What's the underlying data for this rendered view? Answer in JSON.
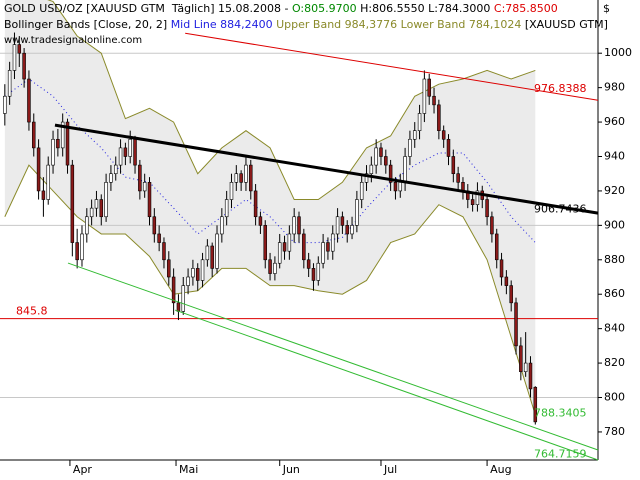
{
  "chart_data": {
    "type": "candlestick",
    "header": {
      "title": "GOLD USD/OZ [XAUUSD GTM  Täglich] 15.08.2008 -",
      "open": "O:805.9700",
      "high": "H:806.5550",
      "low": "L:784.3000",
      "close": "C:785.8500",
      "indicator": "Bollinger Bands [Close, 20, 2]",
      "mid": "Mid Line 884,2400",
      "bands": "Upper Band 984,3776 Lower Band 784,1024",
      "symbol": "[XAUUSD GTM]",
      "site": "www.tradesignalonline.com",
      "currency": "$"
    },
    "xlim": [
      -1,
      123
    ],
    "xticks": [
      {
        "value": 13.5,
        "label": "Apr"
      },
      {
        "value": 35.5,
        "label": "Mai"
      },
      {
        "value": 57,
        "label": "Jun"
      },
      {
        "value": 78,
        "label": "Jul"
      },
      {
        "value": 100,
        "label": "Aug"
      }
    ],
    "ylim": [
      763.7,
      1028
    ],
    "yticks": [
      780,
      800,
      820,
      840,
      860,
      880,
      900,
      920,
      940,
      960,
      980,
      1000
    ],
    "major_grid": [
      800,
      900,
      1000
    ],
    "up_color": "#ffffff",
    "down_color": "#8b1a1a",
    "ohlc": [
      [
        965,
        982,
        958,
        975
      ],
      [
        975,
        995,
        970,
        990
      ],
      [
        990,
        1012,
        985,
        1005
      ],
      [
        1005,
        1010,
        992,
        1000
      ],
      [
        1000,
        1003,
        980,
        985
      ],
      [
        985,
        990,
        955,
        960
      ],
      [
        960,
        965,
        940,
        945
      ],
      [
        945,
        950,
        915,
        920
      ],
      [
        920,
        928,
        905,
        915
      ],
      [
        915,
        940,
        912,
        935
      ],
      [
        935,
        955,
        930,
        950
      ],
      [
        950,
        956,
        940,
        945
      ],
      [
        945,
        965,
        940,
        960
      ],
      [
        960,
        962,
        930,
        935
      ],
      [
        935,
        938,
        882,
        890
      ],
      [
        890,
        898,
        875,
        880
      ],
      [
        880,
        900,
        876,
        895
      ],
      [
        895,
        910,
        890,
        905
      ],
      [
        905,
        915,
        900,
        910
      ],
      [
        910,
        920,
        905,
        915
      ],
      [
        915,
        918,
        900,
        905
      ],
      [
        905,
        930,
        902,
        925
      ],
      [
        925,
        935,
        920,
        930
      ],
      [
        930,
        940,
        926,
        935
      ],
      [
        935,
        950,
        930,
        945
      ],
      [
        945,
        948,
        935,
        940
      ],
      [
        940,
        955,
        936,
        950
      ],
      [
        950,
        952,
        930,
        935
      ],
      [
        935,
        938,
        915,
        920
      ],
      [
        920,
        930,
        916,
        925
      ],
      [
        925,
        928,
        900,
        905
      ],
      [
        905,
        910,
        890,
        895
      ],
      [
        895,
        900,
        885,
        890
      ],
      [
        890,
        893,
        875,
        880
      ],
      [
        880,
        885,
        865,
        870
      ],
      [
        870,
        875,
        848,
        855
      ],
      [
        855,
        860,
        845,
        850
      ],
      [
        850,
        870,
        848,
        865
      ],
      [
        865,
        875,
        860,
        870
      ],
      [
        870,
        880,
        865,
        875
      ],
      [
        875,
        878,
        862,
        868
      ],
      [
        868,
        884,
        864,
        880
      ],
      [
        880,
        892,
        876,
        888
      ],
      [
        888,
        890,
        870,
        875
      ],
      [
        875,
        900,
        872,
        895
      ],
      [
        895,
        910,
        890,
        905
      ],
      [
        905,
        920,
        900,
        915
      ],
      [
        915,
        930,
        910,
        925
      ],
      [
        925,
        935,
        920,
        930
      ],
      [
        930,
        932,
        920,
        925
      ],
      [
        925,
        940,
        920,
        935
      ],
      [
        935,
        938,
        915,
        920
      ],
      [
        920,
        924,
        900,
        905
      ],
      [
        905,
        908,
        895,
        900
      ],
      [
        900,
        903,
        875,
        880
      ],
      [
        880,
        884,
        868,
        872
      ],
      [
        872,
        882,
        868,
        878
      ],
      [
        878,
        895,
        875,
        890
      ],
      [
        890,
        894,
        880,
        885
      ],
      [
        885,
        900,
        880,
        895
      ],
      [
        895,
        910,
        890,
        905
      ],
      [
        905,
        908,
        890,
        895
      ],
      [
        895,
        898,
        875,
        880
      ],
      [
        880,
        884,
        870,
        875
      ],
      [
        875,
        878,
        862,
        868
      ],
      [
        868,
        882,
        865,
        878
      ],
      [
        878,
        895,
        875,
        890
      ],
      [
        890,
        893,
        880,
        885
      ],
      [
        885,
        900,
        880,
        895
      ],
      [
        895,
        910,
        890,
        905
      ],
      [
        905,
        908,
        895,
        900
      ],
      [
        900,
        903,
        890,
        895
      ],
      [
        895,
        905,
        892,
        900
      ],
      [
        900,
        920,
        896,
        915
      ],
      [
        915,
        930,
        910,
        925
      ],
      [
        925,
        935,
        920,
        930
      ],
      [
        930,
        940,
        925,
        935
      ],
      [
        935,
        950,
        930,
        945
      ],
      [
        945,
        948,
        935,
        940
      ],
      [
        940,
        944,
        930,
        935
      ],
      [
        935,
        938,
        920,
        925
      ],
      [
        925,
        928,
        915,
        920
      ],
      [
        920,
        930,
        916,
        925
      ],
      [
        925,
        945,
        920,
        940
      ],
      [
        940,
        955,
        935,
        950
      ],
      [
        950,
        960,
        945,
        955
      ],
      [
        955,
        970,
        950,
        965
      ],
      [
        965,
        990,
        960,
        985
      ],
      [
        985,
        988,
        970,
        975
      ],
      [
        975,
        980,
        965,
        970
      ],
      [
        970,
        973,
        950,
        955
      ],
      [
        955,
        958,
        945,
        950
      ],
      [
        950,
        953,
        935,
        940
      ],
      [
        940,
        944,
        925,
        930
      ],
      [
        930,
        934,
        920,
        925
      ],
      [
        925,
        928,
        915,
        920
      ],
      [
        920,
        924,
        910,
        915
      ],
      [
        915,
        918,
        908,
        912
      ],
      [
        912,
        925,
        908,
        920
      ],
      [
        920,
        923,
        910,
        915
      ],
      [
        915,
        918,
        900,
        905
      ],
      [
        905,
        908,
        890,
        895
      ],
      [
        895,
        898,
        875,
        880
      ],
      [
        880,
        884,
        865,
        870
      ],
      [
        870,
        874,
        860,
        865
      ],
      [
        865,
        868,
        850,
        855
      ],
      [
        855,
        858,
        825,
        830
      ],
      [
        830,
        835,
        810,
        815
      ],
      [
        815,
        838,
        812,
        820
      ],
      [
        820,
        824,
        800,
        805
      ],
      [
        805.97,
        806.555,
        784.3,
        785.85
      ]
    ],
    "bands": {
      "fill": "#ebebeb",
      "x": [
        0,
        5,
        10,
        15,
        20,
        25,
        30,
        35,
        40,
        45,
        50,
        55,
        60,
        65,
        70,
        75,
        80,
        85,
        90,
        95,
        100,
        105,
        110
      ],
      "series": [
        {
          "name": "Upper Band",
          "color": "#8a8a2a",
          "style": "solid",
          "values": [
            1040,
            1035,
            1030,
            1010,
            1000,
            962,
            968,
            960,
            930,
            945,
            955,
            945,
            915,
            915,
            925,
            945,
            952,
            975,
            982,
            985,
            990,
            985,
            990
          ]
        },
        {
          "name": "Mid Line",
          "color": "#2020e0",
          "style": "dotted",
          "values": [
            975,
            985,
            975,
            958,
            945,
            928,
            925,
            910,
            895,
            905,
            915,
            905,
            890,
            890,
            893,
            910,
            925,
            935,
            942,
            942,
            925,
            905,
            890
          ]
        },
        {
          "name": "Lower Band",
          "color": "#8a8a2a",
          "style": "solid",
          "values": [
            905,
            935,
            920,
            905,
            895,
            895,
            882,
            860,
            862,
            875,
            875,
            865,
            865,
            862,
            860,
            868,
            890,
            895,
            912,
            905,
            880,
            835,
            790
          ]
        }
      ]
    },
    "trendlines": [
      {
        "color": "#dd0000",
        "width": 1,
        "x": [
          37.4,
          123
        ],
        "values": [
          1011.6,
          972.7
        ],
        "label": 976.8388
      },
      {
        "color": "#000000",
        "width": 3,
        "x": [
          10.4,
          123
        ],
        "values": [
          958.2,
          907.1
        ],
        "label": 906.7436
      },
      {
        "color": "#33bb33",
        "width": 1,
        "x": [
          13.1,
          123
        ],
        "values": [
          878.1,
          769.5
        ],
        "label": 788.3405
      },
      {
        "color": "#33bb33",
        "width": 1,
        "x": [
          35.3,
          123
        ],
        "values": [
          850.8,
          763.7
        ],
        "label": 764.7159
      }
    ],
    "hline": {
      "value": 845.8,
      "color": "#dd0000"
    }
  }
}
